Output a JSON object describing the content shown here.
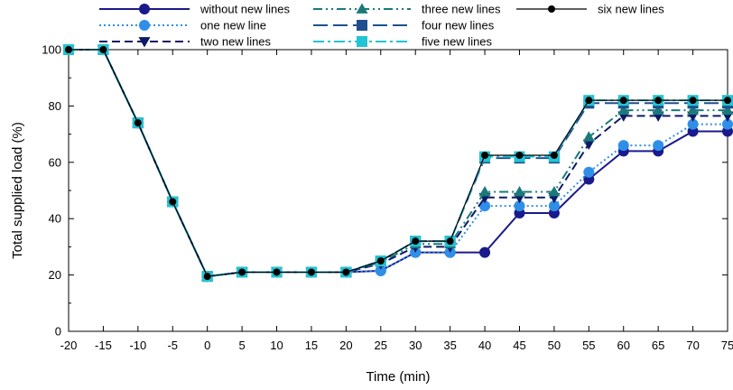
{
  "chart_data": {
    "type": "line",
    "xlabel": "Time (min)",
    "ylabel": "Total supplied load (%)",
    "xlim": [
      -20,
      75
    ],
    "ylim": [
      0,
      100
    ],
    "x_ticks": [
      -20,
      -15,
      -10,
      -5,
      0,
      5,
      10,
      15,
      20,
      25,
      30,
      35,
      40,
      45,
      50,
      55,
      60,
      65,
      70,
      75
    ],
    "y_ticks": [
      0,
      20,
      40,
      60,
      80,
      100
    ],
    "x": [
      -20,
      -15,
      -10,
      -5,
      0,
      5,
      10,
      15,
      20,
      25,
      30,
      35,
      40,
      45,
      50,
      55,
      60,
      65,
      70,
      75
    ],
    "grid": false,
    "legend_position": "top",
    "series": [
      {
        "name": "without new lines",
        "color": "#1a1a8c",
        "dash": "solid",
        "marker": "circle",
        "values": [
          100,
          100,
          74,
          46,
          19.5,
          21,
          21,
          21,
          21,
          21.5,
          28,
          28,
          28,
          42,
          42,
          54,
          64,
          64,
          71,
          71
        ]
      },
      {
        "name": "one  new line",
        "color": "#2f8fe8",
        "dash": "dot",
        "marker": "circle",
        "values": [
          100,
          100,
          74,
          46,
          19.5,
          21,
          21,
          21,
          21,
          21.5,
          28,
          28,
          44.5,
          44.5,
          44.5,
          56.5,
          66,
          66,
          73.5,
          73.5
        ]
      },
      {
        "name": "two  new lines",
        "color": "#0d1a66",
        "dash": "dash",
        "marker": "triangle-down",
        "values": [
          100,
          100,
          74,
          46,
          19.5,
          21,
          21,
          21,
          21,
          24,
          30,
          30,
          47.5,
          47.5,
          47.5,
          66.5,
          76.5,
          76.5,
          76.5,
          76.5
        ]
      },
      {
        "name": "three new lines",
        "color": "#1a7a7a",
        "dash": "dashdotdot",
        "marker": "triangle-up",
        "values": [
          100,
          100,
          74,
          46,
          19.5,
          21,
          21,
          21,
          21,
          24.5,
          31,
          31,
          49.5,
          49.5,
          49.5,
          69,
          78.5,
          78.5,
          78.5,
          78.5
        ]
      },
      {
        "name": "four new lines",
        "color": "#1f4f8f",
        "dash": "longdash",
        "marker": "square",
        "values": [
          100,
          100,
          74,
          46,
          19.5,
          21,
          21,
          21,
          21,
          25,
          32,
          32,
          61.5,
          61.5,
          61.5,
          81,
          81,
          81,
          81,
          81
        ]
      },
      {
        "name": "five new lines",
        "color": "#22c4d4",
        "dash": "dashdot",
        "marker": "square",
        "values": [
          100,
          100,
          74,
          46,
          19.5,
          21,
          21,
          21,
          21,
          25,
          32,
          32,
          62,
          62,
          62,
          82,
          82,
          82,
          82,
          82
        ]
      },
      {
        "name": "six new lines",
        "color": "#000000",
        "dash": "solid-thin",
        "marker": "small-circle",
        "values": [
          100,
          100,
          74,
          46,
          19.5,
          21,
          21,
          21,
          21,
          25,
          32,
          32,
          62.5,
          62.5,
          62.5,
          82,
          82,
          82,
          82,
          82
        ]
      }
    ]
  }
}
